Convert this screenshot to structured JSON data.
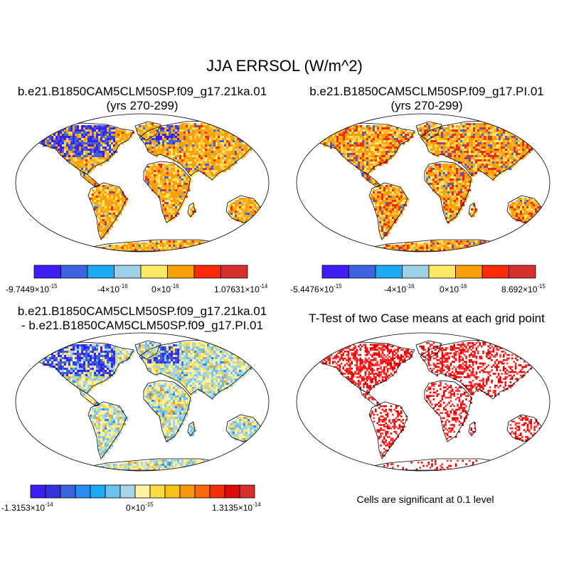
{
  "title": "JJA ERRSOL (W/m^2)",
  "panels": [
    {
      "id": "case1",
      "title_line1": "b.e21.B1850CAM5CLM50SP.f09_g17.21ka.01",
      "title_line2": "(yrs 270-299)",
      "colorbar": {
        "colors": [
          "#3d1ef5",
          "#3e63dc",
          "#1eaaf2",
          "#9ed0e8",
          "#fde965",
          "#f8a00b",
          "#fb2a0b",
          "#d6302c"
        ],
        "labels": [
          {
            "mantissa": "-9.7449",
            "exp": "-15"
          },
          {
            "mantissa": "-4",
            "exp": "-16"
          },
          {
            "mantissa": "0",
            "exp": "-16"
          },
          {
            "mantissa": "1.07631",
            "exp": "-14"
          }
        ]
      }
    },
    {
      "id": "case2",
      "title_line1": "b.e21.B1850CAM5CLM50SP.f09_g17.PI.01",
      "title_line2": "(yrs 270-299)",
      "colorbar": {
        "colors": [
          "#3d1ef5",
          "#3e63dc",
          "#1eaaf2",
          "#9ed0e8",
          "#fde965",
          "#f8a00b",
          "#fb2a0b",
          "#d6302c"
        ],
        "labels": [
          {
            "mantissa": "-5.4476",
            "exp": "-15"
          },
          {
            "mantissa": "-4",
            "exp": "-16"
          },
          {
            "mantissa": "0",
            "exp": "-16"
          },
          {
            "mantissa": "8.692",
            "exp": "-15"
          }
        ]
      }
    },
    {
      "id": "diff",
      "title_line1": "b.e21.B1850CAM5CLM50SP.f09_g17.21ka.01",
      "title_line2": "- b.e21.B1850CAM5CLM50SP.f09_g17.PI.01",
      "colorbar": {
        "colors": [
          "#3d1ef5",
          "#3431d8",
          "#3b63dc",
          "#2b8cf0",
          "#1eaaf2",
          "#6cc2ea",
          "#a9d4e8",
          "#fdf2a8",
          "#fbdd45",
          "#f8c21a",
          "#f7970b",
          "#f9690b",
          "#f52e0b",
          "#de0b0b",
          "#d6302c"
        ],
        "labels": [
          {
            "mantissa": "-1.3153",
            "exp": "-14"
          },
          {
            "mantissa": "0",
            "exp": "-15"
          },
          {
            "mantissa": "1.3135",
            "exp": "-14"
          }
        ]
      }
    },
    {
      "id": "ttest",
      "title_line1": "T-Test of two Case means at each grid point",
      "note": "Cells are significant at 0.1 level"
    }
  ]
}
